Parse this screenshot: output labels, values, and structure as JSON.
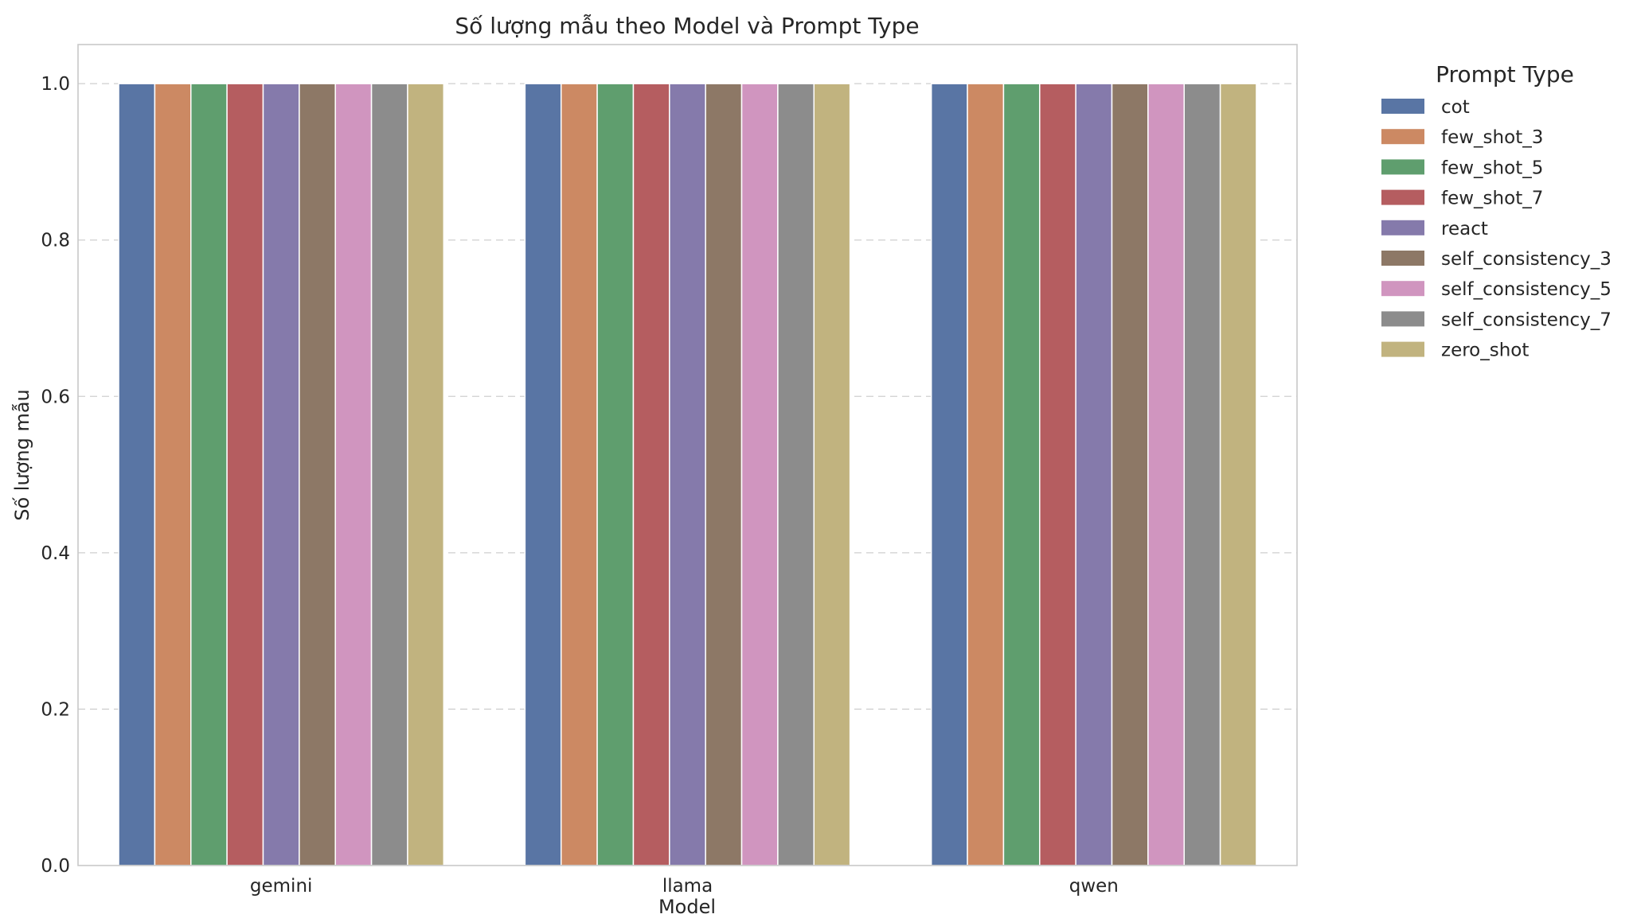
{
  "chart_data": {
    "type": "bar",
    "title": "Số lượng mẫu theo Model và Prompt Type",
    "xlabel": "Model",
    "ylabel": "Số lượng mẫu",
    "categories": [
      "gemini",
      "llama",
      "qwen"
    ],
    "ylim": [
      0,
      1.05
    ],
    "yticks": [
      "0.0",
      "0.2",
      "0.4",
      "0.6",
      "0.8",
      "1.0"
    ],
    "grid": "y-dashed",
    "legend": {
      "title": "Prompt Type",
      "placement": "outside-right"
    },
    "series": [
      {
        "name": "cot",
        "color": "#5975a4",
        "values": [
          1,
          1,
          1
        ]
      },
      {
        "name": "few_shot_3",
        "color": "#cc8963",
        "values": [
          1,
          1,
          1
        ]
      },
      {
        "name": "few_shot_5",
        "color": "#5f9e6e",
        "values": [
          1,
          1,
          1
        ]
      },
      {
        "name": "few_shot_7",
        "color": "#b55d60",
        "values": [
          1,
          1,
          1
        ]
      },
      {
        "name": "react",
        "color": "#857aab",
        "values": [
          1,
          1,
          1
        ]
      },
      {
        "name": "self_consistency_3",
        "color": "#8d7866",
        "values": [
          1,
          1,
          1
        ]
      },
      {
        "name": "self_consistency_5",
        "color": "#d095bf",
        "values": [
          1,
          1,
          1
        ]
      },
      {
        "name": "self_consistency_7",
        "color": "#8c8c8c",
        "values": [
          1,
          1,
          1
        ]
      },
      {
        "name": "zero_shot",
        "color": "#c1b37f",
        "values": [
          1,
          1,
          1
        ]
      }
    ]
  }
}
